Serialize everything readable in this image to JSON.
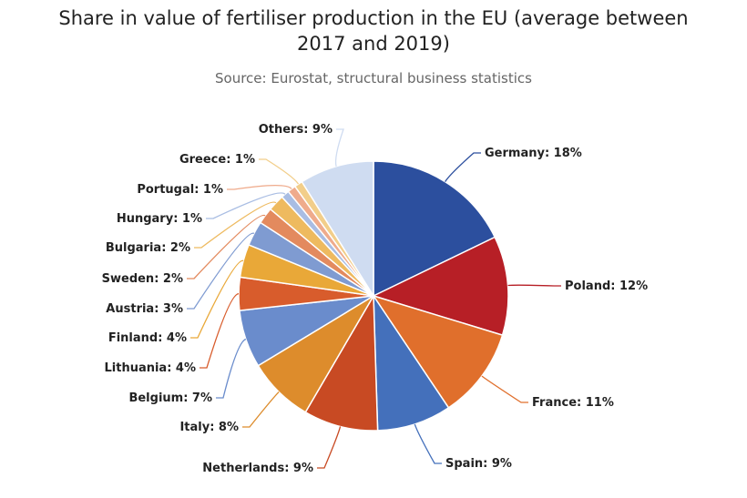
{
  "chart_data": {
    "type": "pie",
    "title_line1": "Share in value of fertiliser production in the EU (average between",
    "title_line2": "2017 and 2019)",
    "subtitle": "Source: Eurostat, structural business statistics",
    "slices": [
      {
        "label": "Germany: 18%",
        "name": "Germany",
        "value": 18,
        "color": "#2c4f9e"
      },
      {
        "label": "Poland: 12%",
        "name": "Poland",
        "value": 12,
        "color": "#b71f26"
      },
      {
        "label": "France: 11%",
        "name": "France",
        "value": 11,
        "color": "#e06f2c"
      },
      {
        "label": "Spain: 9%",
        "name": "Spain",
        "value": 9,
        "color": "#4470bb"
      },
      {
        "label": "Netherlands: 9%",
        "name": "Netherlands",
        "value": 9,
        "color": "#c84a23"
      },
      {
        "label": "Italy: 8%",
        "name": "Italy",
        "value": 8,
        "color": "#dd8c2c"
      },
      {
        "label": "Belgium: 7%",
        "name": "Belgium",
        "value": 7,
        "color": "#6a8ccc"
      },
      {
        "label": "Lithuania: 4%",
        "name": "Lithuania",
        "value": 4,
        "color": "#d85c2c"
      },
      {
        "label": "Finland: 4%",
        "name": "Finland",
        "value": 4,
        "color": "#e9a838"
      },
      {
        "label": "Austria: 3%",
        "name": "Austria",
        "value": 3,
        "color": "#7f9bd1"
      },
      {
        "label": "Sweden: 2%",
        "name": "Sweden",
        "value": 2,
        "color": "#e38a5e"
      },
      {
        "label": "Bulgaria: 2%",
        "name": "Bulgaria",
        "value": 2,
        "color": "#eeba5f"
      },
      {
        "label": "Hungary: 1%",
        "name": "Hungary",
        "value": 1,
        "color": "#a9bde3"
      },
      {
        "label": "Portugal: 1%",
        "name": "Portugal",
        "value": 1,
        "color": "#efab8c"
      },
      {
        "label": "Greece: 1%",
        "name": "Greece",
        "value": 1,
        "color": "#f2ce8a"
      },
      {
        "label": "Others: 9%",
        "name": "Others",
        "value": 9,
        "color": "#cfdcf1"
      }
    ]
  }
}
